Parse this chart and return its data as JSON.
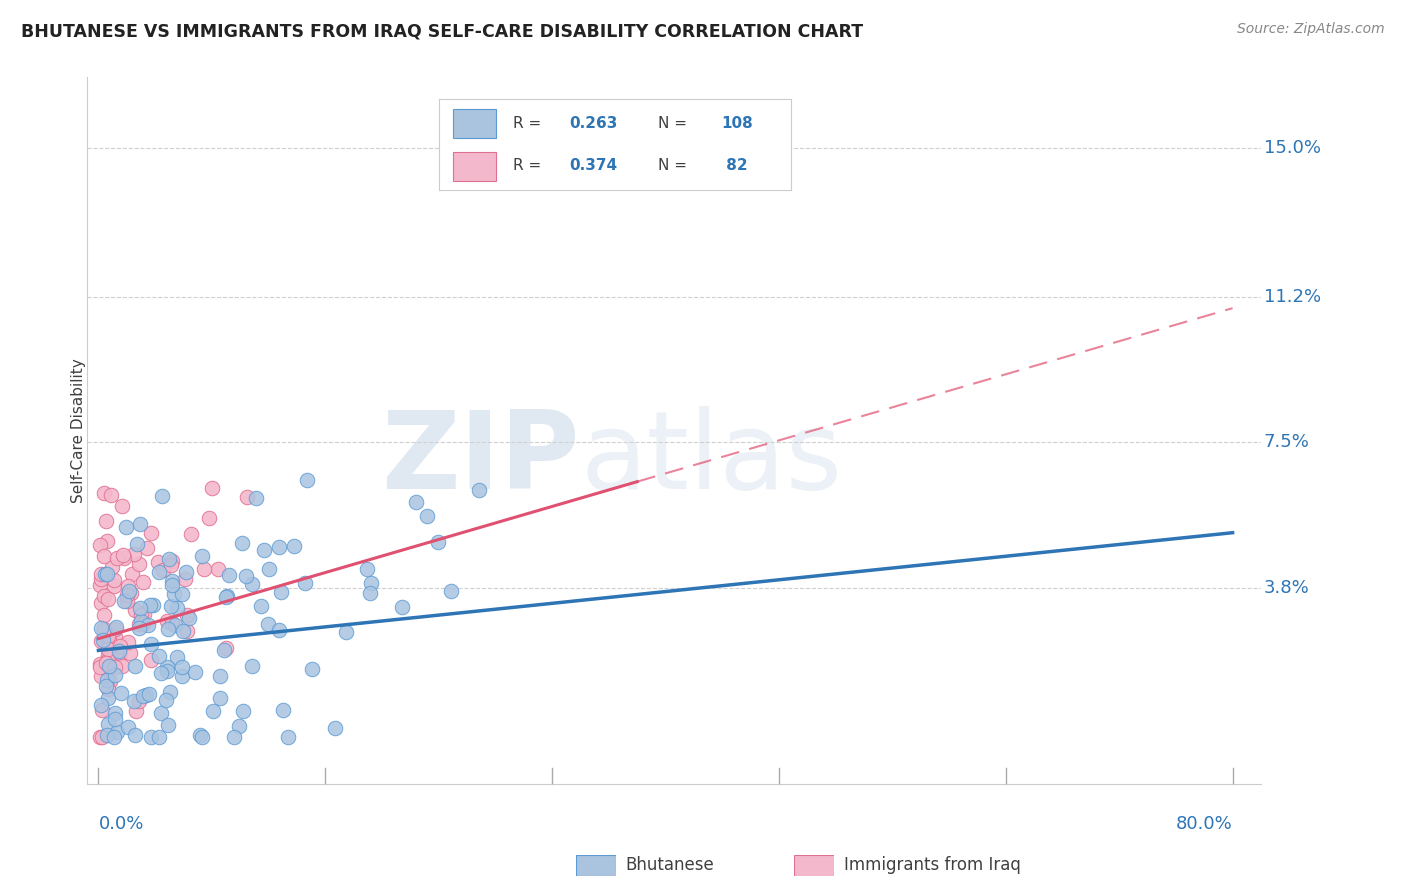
{
  "title": "BHUTANESE VS IMMIGRANTS FROM IRAQ SELF-CARE DISABILITY CORRELATION CHART",
  "source": "Source: ZipAtlas.com",
  "ylabel": "Self-Care Disability",
  "ytick_labels": [
    "15.0%",
    "11.2%",
    "7.5%",
    "3.8%"
  ],
  "ytick_values": [
    0.15,
    0.112,
    0.075,
    0.038
  ],
  "xlim": [
    0.0,
    0.8
  ],
  "ylim": [
    -0.012,
    0.168
  ],
  "blue_R": 0.263,
  "blue_N": 108,
  "pink_R": 0.374,
  "pink_N": 82,
  "blue_scatter_color": "#aac4e0",
  "blue_edge_color": "#5b9bd5",
  "blue_line_color": "#2e75b6",
  "pink_scatter_color": "#f4b8cc",
  "pink_edge_color": "#e07090",
  "pink_line_color": "#e05070",
  "text_blue": "#2e75b6",
  "text_dark": "#404040",
  "watermark_color": "#c8d8e8",
  "legend_label_blue": "Bhutanese",
  "legend_label_pink": "Immigrants from Iraq"
}
